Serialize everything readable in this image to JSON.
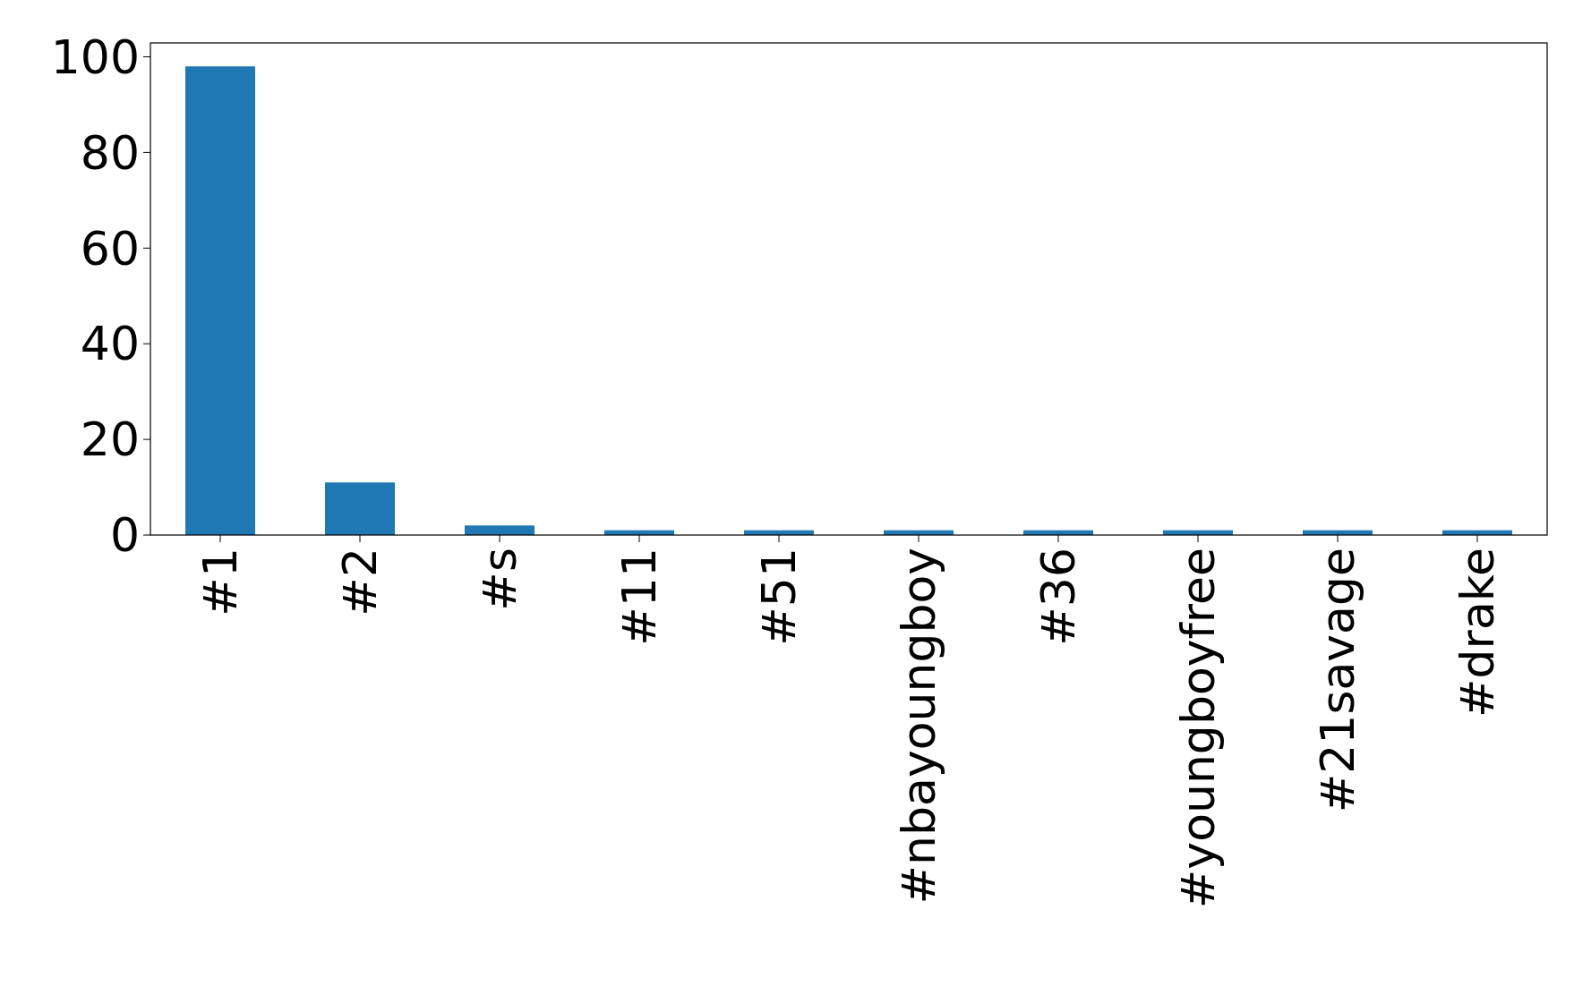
{
  "chart_data": {
    "type": "bar",
    "categories": [
      "#1",
      "#2",
      "#s",
      "#11",
      "#51",
      "#nbayoungboy",
      "#36",
      "#youngboyfree",
      "#21savage",
      "#drake"
    ],
    "values": [
      98,
      11,
      2,
      1,
      1,
      1,
      1,
      1,
      1,
      1
    ],
    "color": "#1f77b4",
    "ylim": [
      0,
      102.9
    ],
    "yticks": [
      0,
      20,
      40,
      60,
      80,
      100
    ],
    "grid": false
  }
}
